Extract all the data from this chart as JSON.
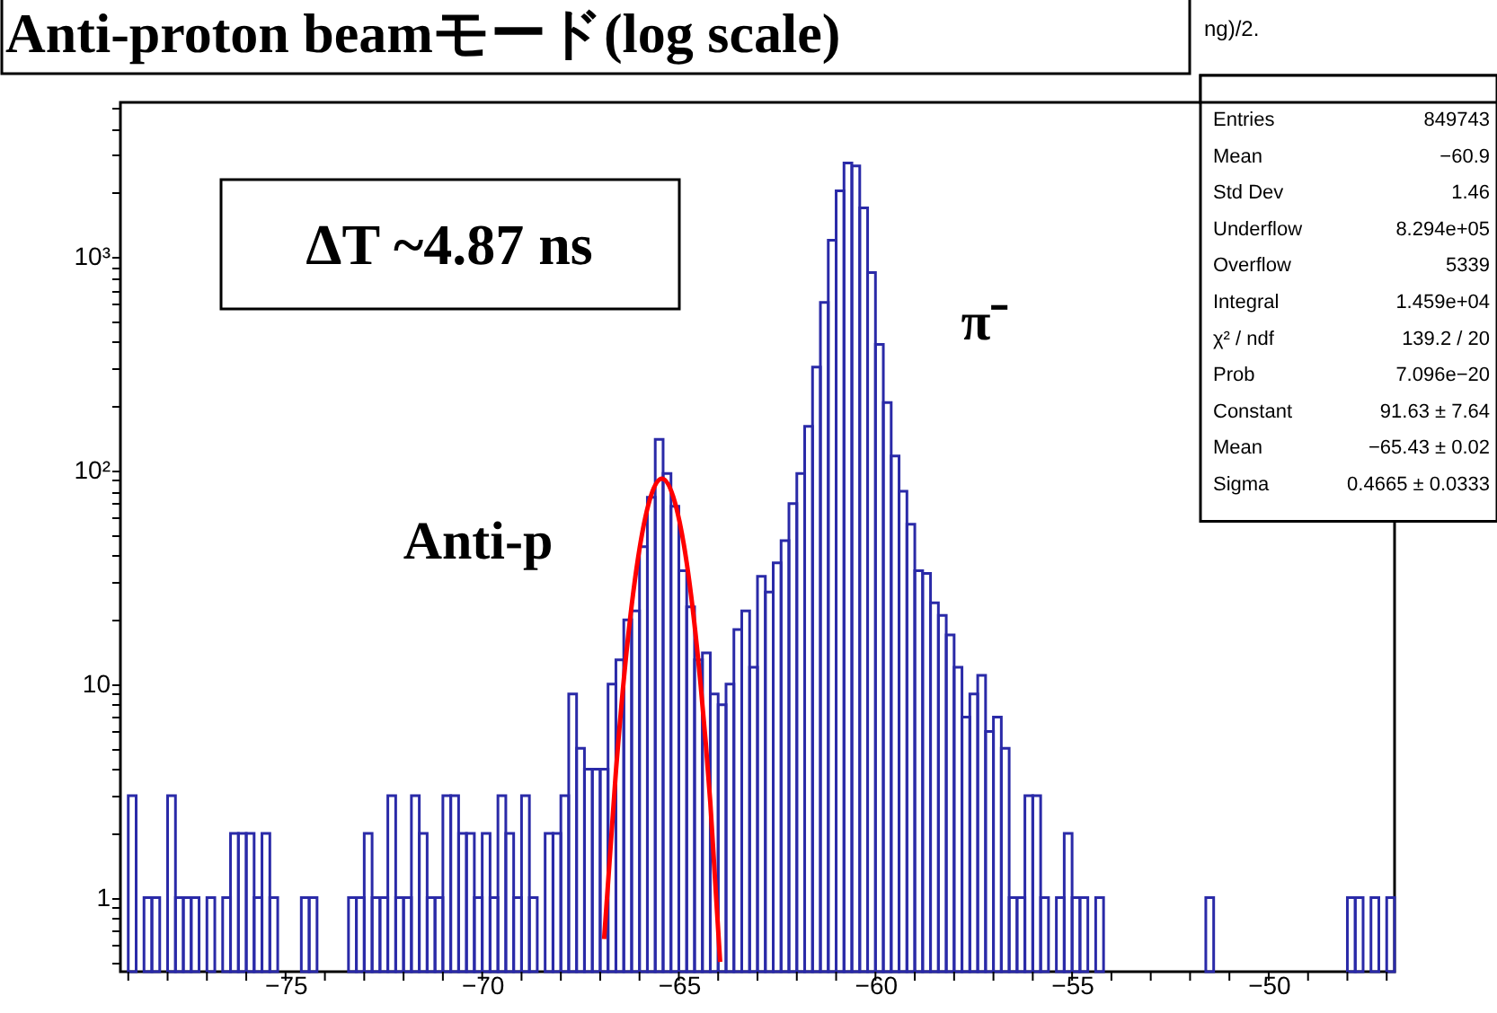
{
  "chart_data": {
    "type": "histogram",
    "title": "Anti-proton beamモード(log scale)",
    "bins": [
      -79.2,
      -79,
      -78.8,
      -78.6,
      -78.4,
      -78.2,
      -78,
      -77.8,
      -77.6,
      -77.4,
      -77.2,
      -77,
      -76.8,
      -76.6,
      -76.4,
      -76.2,
      -76,
      -75.8,
      -75.6,
      -75.4,
      -75.2,
      -75,
      -74.8,
      -74.6,
      -74.4,
      -74.2,
      -74,
      -73.8,
      -73.6,
      -73.4,
      -73.2,
      -73,
      -72.8,
      -72.6,
      -72.4,
      -72.2,
      -72,
      -71.8,
      -71.6,
      -71.4,
      -71.2,
      -71,
      -70.8,
      -70.6,
      -70.4,
      -70.2,
      -70,
      -69.8,
      -69.6,
      -69.4,
      -69.2,
      -69,
      -68.8,
      -68.6,
      -68.4,
      -68.2,
      -68,
      -67.8,
      -67.6,
      -67.4,
      -67.2,
      -67,
      -66.8,
      -66.6,
      -66.4,
      -66.2,
      -66,
      -65.8,
      -65.6,
      -65.4,
      -65.2,
      -65,
      -64.8,
      -64.6,
      -64.4,
      -64.2,
      -64,
      -63.8,
      -63.6,
      -63.4,
      -63.2,
      -63,
      -62.8,
      -62.6,
      -62.4,
      -62.2,
      -62,
      -61.8,
      -61.6,
      -61.4,
      -61.2,
      -61,
      -60.8,
      -60.6,
      -60.4,
      -60.2,
      -60,
      -59.8,
      -59.6,
      -59.4,
      -59.2,
      -59,
      -58.8,
      -58.6,
      -58.4,
      -58.2,
      -58,
      -57.8,
      -57.6,
      -57.4,
      -57.2,
      -57,
      -56.8,
      -56.6,
      -56.4,
      -56.2,
      -56,
      -55.8,
      -55.6,
      -55.4,
      -55.2,
      -55,
      -54.8,
      -54.6,
      -54.4,
      -54.2,
      -54,
      -53.8,
      -53.6,
      -53.4,
      -53.2,
      -53,
      -52.8,
      -52.6,
      -52.4,
      -52.2,
      -52,
      -51.8,
      -51.6,
      -51.4,
      -51.2,
      -51,
      -50.8,
      -50.6,
      -50.4,
      -50.2,
      -50,
      -49.8,
      -49.6,
      -49.4,
      -49.2,
      -49,
      -48.8,
      -48.6,
      -48.4,
      -48.2,
      -48,
      -47.8,
      -47.6,
      -47.4,
      -47.2,
      -47,
      -46.8
    ],
    "values": [
      null,
      3,
      null,
      1,
      1,
      null,
      3,
      1,
      1,
      1,
      null,
      1,
      null,
      1,
      2,
      2,
      2,
      1,
      2,
      1,
      null,
      null,
      null,
      1,
      1,
      null,
      null,
      null,
      null,
      1,
      1,
      2,
      1,
      1,
      3,
      1,
      1,
      3,
      2,
      1,
      1,
      3,
      3,
      2,
      2,
      1,
      2,
      1,
      3,
      2,
      1,
      3,
      1,
      null,
      2,
      2,
      3,
      9,
      5,
      4,
      4,
      4,
      10,
      13,
      20,
      22,
      44,
      75,
      140,
      97,
      68,
      34,
      23,
      13,
      14,
      9,
      8,
      10,
      18,
      22,
      12,
      32,
      27,
      37,
      47,
      70,
      97,
      161,
      305,
      613,
      1200,
      2040,
      2760,
      2670,
      1700,
      846,
      390,
      208,
      117,
      80,
      56,
      34,
      33,
      24,
      21,
      17,
      12,
      7,
      9,
      11,
      6,
      7,
      5,
      1,
      1,
      3,
      3,
      1,
      null,
      1,
      2,
      1,
      1,
      null,
      1,
      null,
      null,
      null,
      null,
      null,
      null,
      null,
      null,
      null,
      null,
      null,
      null,
      null,
      1,
      null,
      null,
      null,
      null,
      null,
      null,
      null,
      null,
      null,
      null,
      null,
      null,
      null,
      null,
      null,
      null,
      null,
      1,
      1,
      null,
      1,
      null,
      1
    ],
    "color": "#2a2aa8",
    "series": [
      {
        "type": "line",
        "color": "#ff0000",
        "x": [
          -66.9,
          -66.6,
          -66.3,
          -66.0,
          -65.7,
          -65.43,
          -65.1,
          -64.8,
          -64.5,
          -64.2,
          -63.95
        ],
        "values": [
          0.64,
          3.9,
          16,
          43,
          77,
          91.6,
          71,
          37,
          12.6,
          2.8,
          0.5
        ]
      }
    ],
    "log": true,
    "xlim": [
      -79.2,
      -46.8
    ],
    "xticks": [
      {
        "value": -79,
        "label": null
      },
      {
        "value": -78,
        "label": null
      },
      {
        "value": -77,
        "label": null
      },
      {
        "value": -76,
        "label": null
      },
      {
        "value": -75,
        "label": "−75"
      },
      {
        "value": -74,
        "label": null
      },
      {
        "value": -73,
        "label": null
      },
      {
        "value": -72,
        "label": null
      },
      {
        "value": -71,
        "label": null
      },
      {
        "value": -70,
        "label": "−70"
      },
      {
        "value": -69,
        "label": null
      },
      {
        "value": -68,
        "label": null
      },
      {
        "value": -67,
        "label": null
      },
      {
        "value": -66,
        "label": null
      },
      {
        "value": -65,
        "label": "−65"
      },
      {
        "value": -64,
        "label": null
      },
      {
        "value": -63,
        "label": null
      },
      {
        "value": -62,
        "label": null
      },
      {
        "value": -61,
        "label": null
      },
      {
        "value": -60,
        "label": "−60"
      },
      {
        "value": -59,
        "label": null
      },
      {
        "value": -58,
        "label": null
      },
      {
        "value": -57,
        "label": null
      },
      {
        "value": -56,
        "label": null
      },
      {
        "value": -55,
        "label": "−55"
      },
      {
        "value": -54,
        "label": null
      },
      {
        "value": -53,
        "label": null
      },
      {
        "value": -52,
        "label": null
      },
      {
        "value": -51,
        "label": null
      },
      {
        "value": -50,
        "label": "−50"
      },
      {
        "value": -49,
        "label": null
      },
      {
        "value": -48,
        "label": null
      },
      {
        "value": -47,
        "label": null
      }
    ],
    "ylim": [
      0.45,
      5300
    ],
    "yticks": [
      {
        "value": 0.5,
        "label": null
      },
      {
        "value": 0.6,
        "label": null
      },
      {
        "value": 0.7,
        "label": null
      },
      {
        "value": 0.8,
        "label": null
      },
      {
        "value": 0.9,
        "label": null
      },
      1,
      {
        "value": 2,
        "label": null
      },
      {
        "value": 3,
        "label": null
      },
      {
        "value": 4,
        "label": null
      },
      {
        "value": 5,
        "label": null
      },
      {
        "value": 6,
        "label": null
      },
      {
        "value": 7,
        "label": null
      },
      {
        "value": 8,
        "label": null
      },
      {
        "value": 9,
        "label": null
      },
      10,
      {
        "value": 20,
        "label": null
      },
      {
        "value": 30,
        "label": null
      },
      {
        "value": 40,
        "label": null
      },
      {
        "value": 50,
        "label": null
      },
      {
        "value": 60,
        "label": null
      },
      {
        "value": 70,
        "label": null
      },
      {
        "value": 80,
        "label": null
      },
      {
        "value": 90,
        "label": null
      },
      {
        "value": 100,
        "label": "10²"
      },
      {
        "value": 200,
        "label": null
      },
      {
        "value": 300,
        "label": null
      },
      {
        "value": 400,
        "label": null
      },
      {
        "value": 500,
        "label": null
      },
      {
        "value": 600,
        "label": null
      },
      {
        "value": 700,
        "label": null
      },
      {
        "value": 800,
        "label": null
      },
      {
        "value": 900,
        "label": null
      },
      {
        "value": 1000,
        "label": "10³"
      },
      {
        "value": 2000,
        "label": null
      },
      {
        "value": 3000,
        "label": null
      },
      {
        "value": 4000,
        "label": null
      },
      {
        "value": 5000,
        "label": null
      }
    ],
    "annotations": [
      "ΔT ~4.87 ns",
      "Anti-p",
      "π⁻",
      "ng)/2.",
      "Entries",
      "849743",
      "Mean",
      "−60.9",
      "Std Dev",
      "1.46",
      "Underflow",
      "8.294e+05",
      "Overflow",
      "5339",
      "Integral",
      "1.459e+04",
      "χ² / ndf",
      "139.2 / 20",
      "Prob",
      "7.096e−20",
      "Constant",
      "91.63 ± 7.64",
      "Mean",
      "−65.43 ± 0.02",
      "Sigma",
      "0.4665 ± 0.0333"
    ]
  }
}
